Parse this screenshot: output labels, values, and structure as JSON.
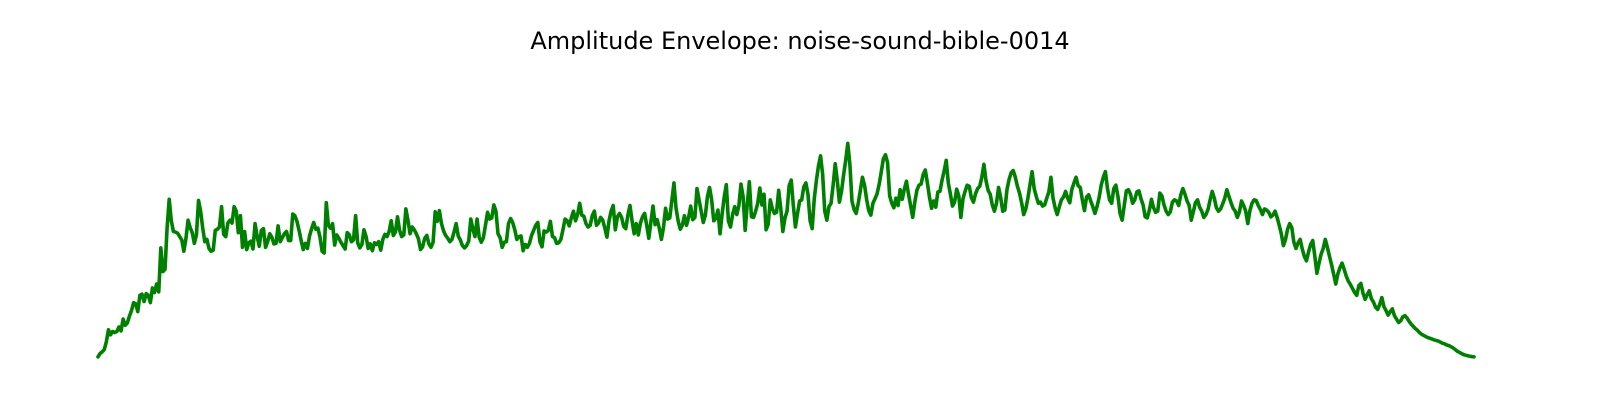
{
  "chart_data": {
    "type": "line",
    "title": "Amplitude Envelope: noise-sound-bible-0014",
    "xlabel": "",
    "ylabel": "",
    "axes_visible": false,
    "grid": false,
    "legend": "none",
    "line_color": "#008000",
    "ylim": [
      0,
      1.02
    ],
    "series": [
      {
        "values": [
          0.004,
          0.016,
          0.022,
          0.03,
          0.058,
          0.1,
          0.082,
          0.094,
          0.09,
          0.094,
          0.11,
          0.096,
          0.138,
          0.116,
          0.124,
          0.148,
          0.168,
          0.196,
          0.192,
          0.164,
          0.222,
          0.226,
          0.2,
          0.228,
          0.222,
          0.196,
          0.248,
          0.232,
          0.262,
          0.234,
          0.39,
          0.306,
          0.314,
          0.462,
          0.562,
          0.486,
          0.448,
          0.446,
          0.442,
          0.43,
          0.418,
          0.378,
          0.424,
          0.488,
          0.462,
          0.444,
          0.406,
          0.436,
          0.558,
          0.52,
          0.46,
          0.412,
          0.42,
          0.388,
          0.378,
          0.382,
          0.452,
          0.456,
          0.464,
          0.536,
          0.438,
          0.43,
          0.478,
          0.488,
          0.478,
          0.536,
          0.52,
          0.444,
          0.504,
          0.392,
          0.448,
          0.384,
          0.408,
          0.414,
          0.386,
          0.476,
          0.43,
          0.396,
          0.452,
          0.458,
          0.392,
          0.412,
          0.44,
          0.428,
          0.404,
          0.406,
          0.468,
          0.412,
          0.426,
          0.44,
          0.448,
          0.416,
          0.416,
          0.51,
          0.504,
          0.484,
          0.452,
          0.416,
          0.384,
          0.406,
          0.388,
          0.432,
          0.458,
          0.48,
          0.456,
          0.46,
          0.428,
          0.378,
          0.372,
          0.55,
          0.47,
          0.46,
          0.476,
          0.4,
          0.436,
          0.424,
          0.41,
          0.398,
          0.386,
          0.444,
          0.436,
          0.412,
          0.418,
          0.504,
          0.408,
          0.39,
          0.402,
          0.454,
          0.43,
          0.388,
          0.404,
          0.38,
          0.408,
          0.402,
          0.412,
          0.382,
          0.42,
          0.438,
          0.43,
          0.448,
          0.486,
          0.434,
          0.446,
          0.5,
          0.452,
          0.43,
          0.436,
          0.528,
          0.488,
          0.44,
          0.464,
          0.454,
          0.44,
          0.422,
          0.384,
          0.394,
          0.424,
          0.434,
          0.404,
          0.392,
          0.41,
          0.518,
          0.484,
          0.522,
          0.476,
          0.45,
          0.434,
          0.424,
          0.412,
          0.42,
          0.446,
          0.476,
          0.432,
          0.418,
          0.398,
          0.39,
          0.398,
          0.414,
          0.492,
          0.456,
          0.43,
          0.492,
          0.428,
          0.41,
          0.426,
          0.47,
          0.516,
          0.492,
          0.496,
          0.542,
          0.52,
          0.44,
          0.426,
          0.392,
          0.41,
          0.412,
          0.476,
          0.494,
          0.48,
          0.454,
          0.42,
          0.43,
          0.432,
          0.38,
          0.402,
          0.392,
          0.406,
          0.434,
          0.452,
          0.47,
          0.48,
          0.412,
          0.394,
          0.45,
          0.446,
          0.452,
          0.484,
          0.43,
          0.426,
          0.406,
          0.408,
          0.42,
          0.454,
          0.492,
          0.486,
          0.468,
          0.496,
          0.52,
          0.486,
          0.508,
          0.548,
          0.506,
          0.502,
          0.476,
          0.464,
          0.47,
          0.504,
          0.52,
          0.47,
          0.478,
          0.498,
          0.488,
          0.46,
          0.428,
          0.486,
          0.52,
          0.54,
          0.454,
          0.5,
          0.512,
          0.498,
          0.466,
          0.458,
          0.506,
          0.54,
          0.486,
          0.44,
          0.476,
          0.436,
          0.478,
          0.5,
          0.512,
          0.47,
          0.424,
          0.482,
          0.538,
          0.472,
          0.49,
          0.46,
          0.42,
          0.462,
          0.53,
          0.492,
          0.496,
          0.558,
          0.62,
          0.53,
          0.486,
          0.456,
          0.47,
          0.504,
          0.47,
          0.498,
          0.538,
          0.49,
          0.498,
          0.6,
          0.56,
          0.52,
          0.48,
          0.506,
          0.572,
          0.604,
          0.56,
          0.486,
          0.494,
          0.524,
          0.44,
          0.51,
          0.57,
          0.614,
          0.486,
          0.464,
          0.508,
          0.536,
          0.508,
          0.54,
          0.616,
          0.572,
          0.452,
          0.544,
          0.624,
          0.5,
          0.498,
          0.52,
          0.548,
          0.602,
          0.542,
          0.58,
          0.454,
          0.474,
          0.56,
          0.528,
          0.512,
          0.516,
          0.594,
          0.53,
          0.448,
          0.496,
          0.52,
          0.61,
          0.63,
          0.54,
          0.464,
          0.512,
          0.556,
          0.56,
          0.606,
          0.62,
          0.58,
          0.486,
          0.458,
          0.564,
          0.628,
          0.68,
          0.716,
          0.65,
          0.52,
          0.488,
          0.536,
          0.548,
          0.612,
          0.688,
          0.628,
          0.552,
          0.59,
          0.648,
          0.7,
          0.76,
          0.686,
          0.556,
          0.526,
          0.512,
          0.548,
          0.594,
          0.64,
          0.612,
          0.562,
          0.522,
          0.506,
          0.548,
          0.564,
          0.582,
          0.616,
          0.66,
          0.706,
          0.72,
          0.692,
          0.574,
          0.548,
          0.532,
          0.566,
          0.54,
          0.596,
          0.562,
          0.598,
          0.626,
          0.58,
          0.54,
          0.498,
          0.552,
          0.594,
          0.612,
          0.616,
          0.65,
          0.666,
          0.62,
          0.57,
          0.53,
          0.556,
          0.534,
          0.588,
          0.59,
          0.63,
          0.662,
          0.7,
          0.62,
          0.58,
          0.538,
          0.552,
          0.598,
          0.574,
          0.498,
          0.564,
          0.59,
          0.612,
          0.608,
          0.568,
          0.552,
          0.582,
          0.6,
          0.608,
          0.64,
          0.686,
          0.628,
          0.594,
          0.58,
          0.542,
          0.52,
          0.548,
          0.604,
          0.568,
          0.52,
          0.524,
          0.596,
          0.632,
          0.656,
          0.664,
          0.64,
          0.608,
          0.584,
          0.55,
          0.508,
          0.528,
          0.566,
          0.614,
          0.66,
          0.6,
          0.572,
          0.548,
          0.552,
          0.538,
          0.542,
          0.566,
          0.588,
          0.64,
          0.566,
          0.532,
          0.508,
          0.536,
          0.56,
          0.57,
          0.59,
          0.566,
          0.55,
          0.598,
          0.62,
          0.64,
          0.61,
          0.604,
          0.56,
          0.522,
          0.57,
          0.578,
          0.556,
          0.536,
          0.512,
          0.536,
          0.568,
          0.612,
          0.64,
          0.66,
          0.6,
          0.56,
          0.548,
          0.6,
          0.612,
          0.572,
          0.512,
          0.488,
          0.54,
          0.592,
          0.596,
          0.58,
          0.548,
          0.56,
          0.588,
          0.592,
          0.564,
          0.542,
          0.5,
          0.496,
          0.524,
          0.562,
          0.532,
          0.516,
          0.52,
          0.584,
          0.574,
          0.542,
          0.52,
          0.508,
          0.518,
          0.552,
          0.56,
          0.556,
          0.54,
          0.578,
          0.6,
          0.58,
          0.556,
          0.54,
          0.488,
          0.518,
          0.55,
          0.56,
          0.534,
          0.52,
          0.498,
          0.508,
          0.526,
          0.56,
          0.59,
          0.566,
          0.532,
          0.52,
          0.528,
          0.546,
          0.566,
          0.596,
          0.572,
          0.55,
          0.53,
          0.52,
          0.498,
          0.518,
          0.556,
          0.54,
          0.52,
          0.476,
          0.522,
          0.548,
          0.56,
          0.558,
          0.54,
          0.526,
          0.508,
          0.528,
          0.524,
          0.516,
          0.5,
          0.506,
          0.52,
          0.498,
          0.47,
          0.44,
          0.398,
          0.42,
          0.456,
          0.476,
          0.462,
          0.41,
          0.388,
          0.408,
          0.42,
          0.386,
          0.36,
          0.344,
          0.376,
          0.402,
          0.416,
          0.36,
          0.3,
          0.336,
          0.368,
          0.388,
          0.42,
          0.392,
          0.36,
          0.33,
          0.296,
          0.262,
          0.298,
          0.32,
          0.336,
          0.314,
          0.29,
          0.272,
          0.26,
          0.246,
          0.232,
          0.222,
          0.256,
          0.264,
          0.23,
          0.208,
          0.224,
          0.238,
          0.21,
          0.198,
          0.18,
          0.172,
          0.19,
          0.214,
          0.182,
          0.168,
          0.152,
          0.164,
          0.174,
          0.15,
          0.138,
          0.126,
          0.132,
          0.146,
          0.15,
          0.142,
          0.13,
          0.12,
          0.112,
          0.104,
          0.098,
          0.09,
          0.084,
          0.08,
          0.076,
          0.072,
          0.07,
          0.067,
          0.064,
          0.062,
          0.06,
          0.056,
          0.052,
          0.05,
          0.046,
          0.044,
          0.04,
          0.036,
          0.03,
          0.024,
          0.02,
          0.016,
          0.012,
          0.01,
          0.008,
          0.006,
          0.005,
          0.004
        ]
      }
    ]
  }
}
